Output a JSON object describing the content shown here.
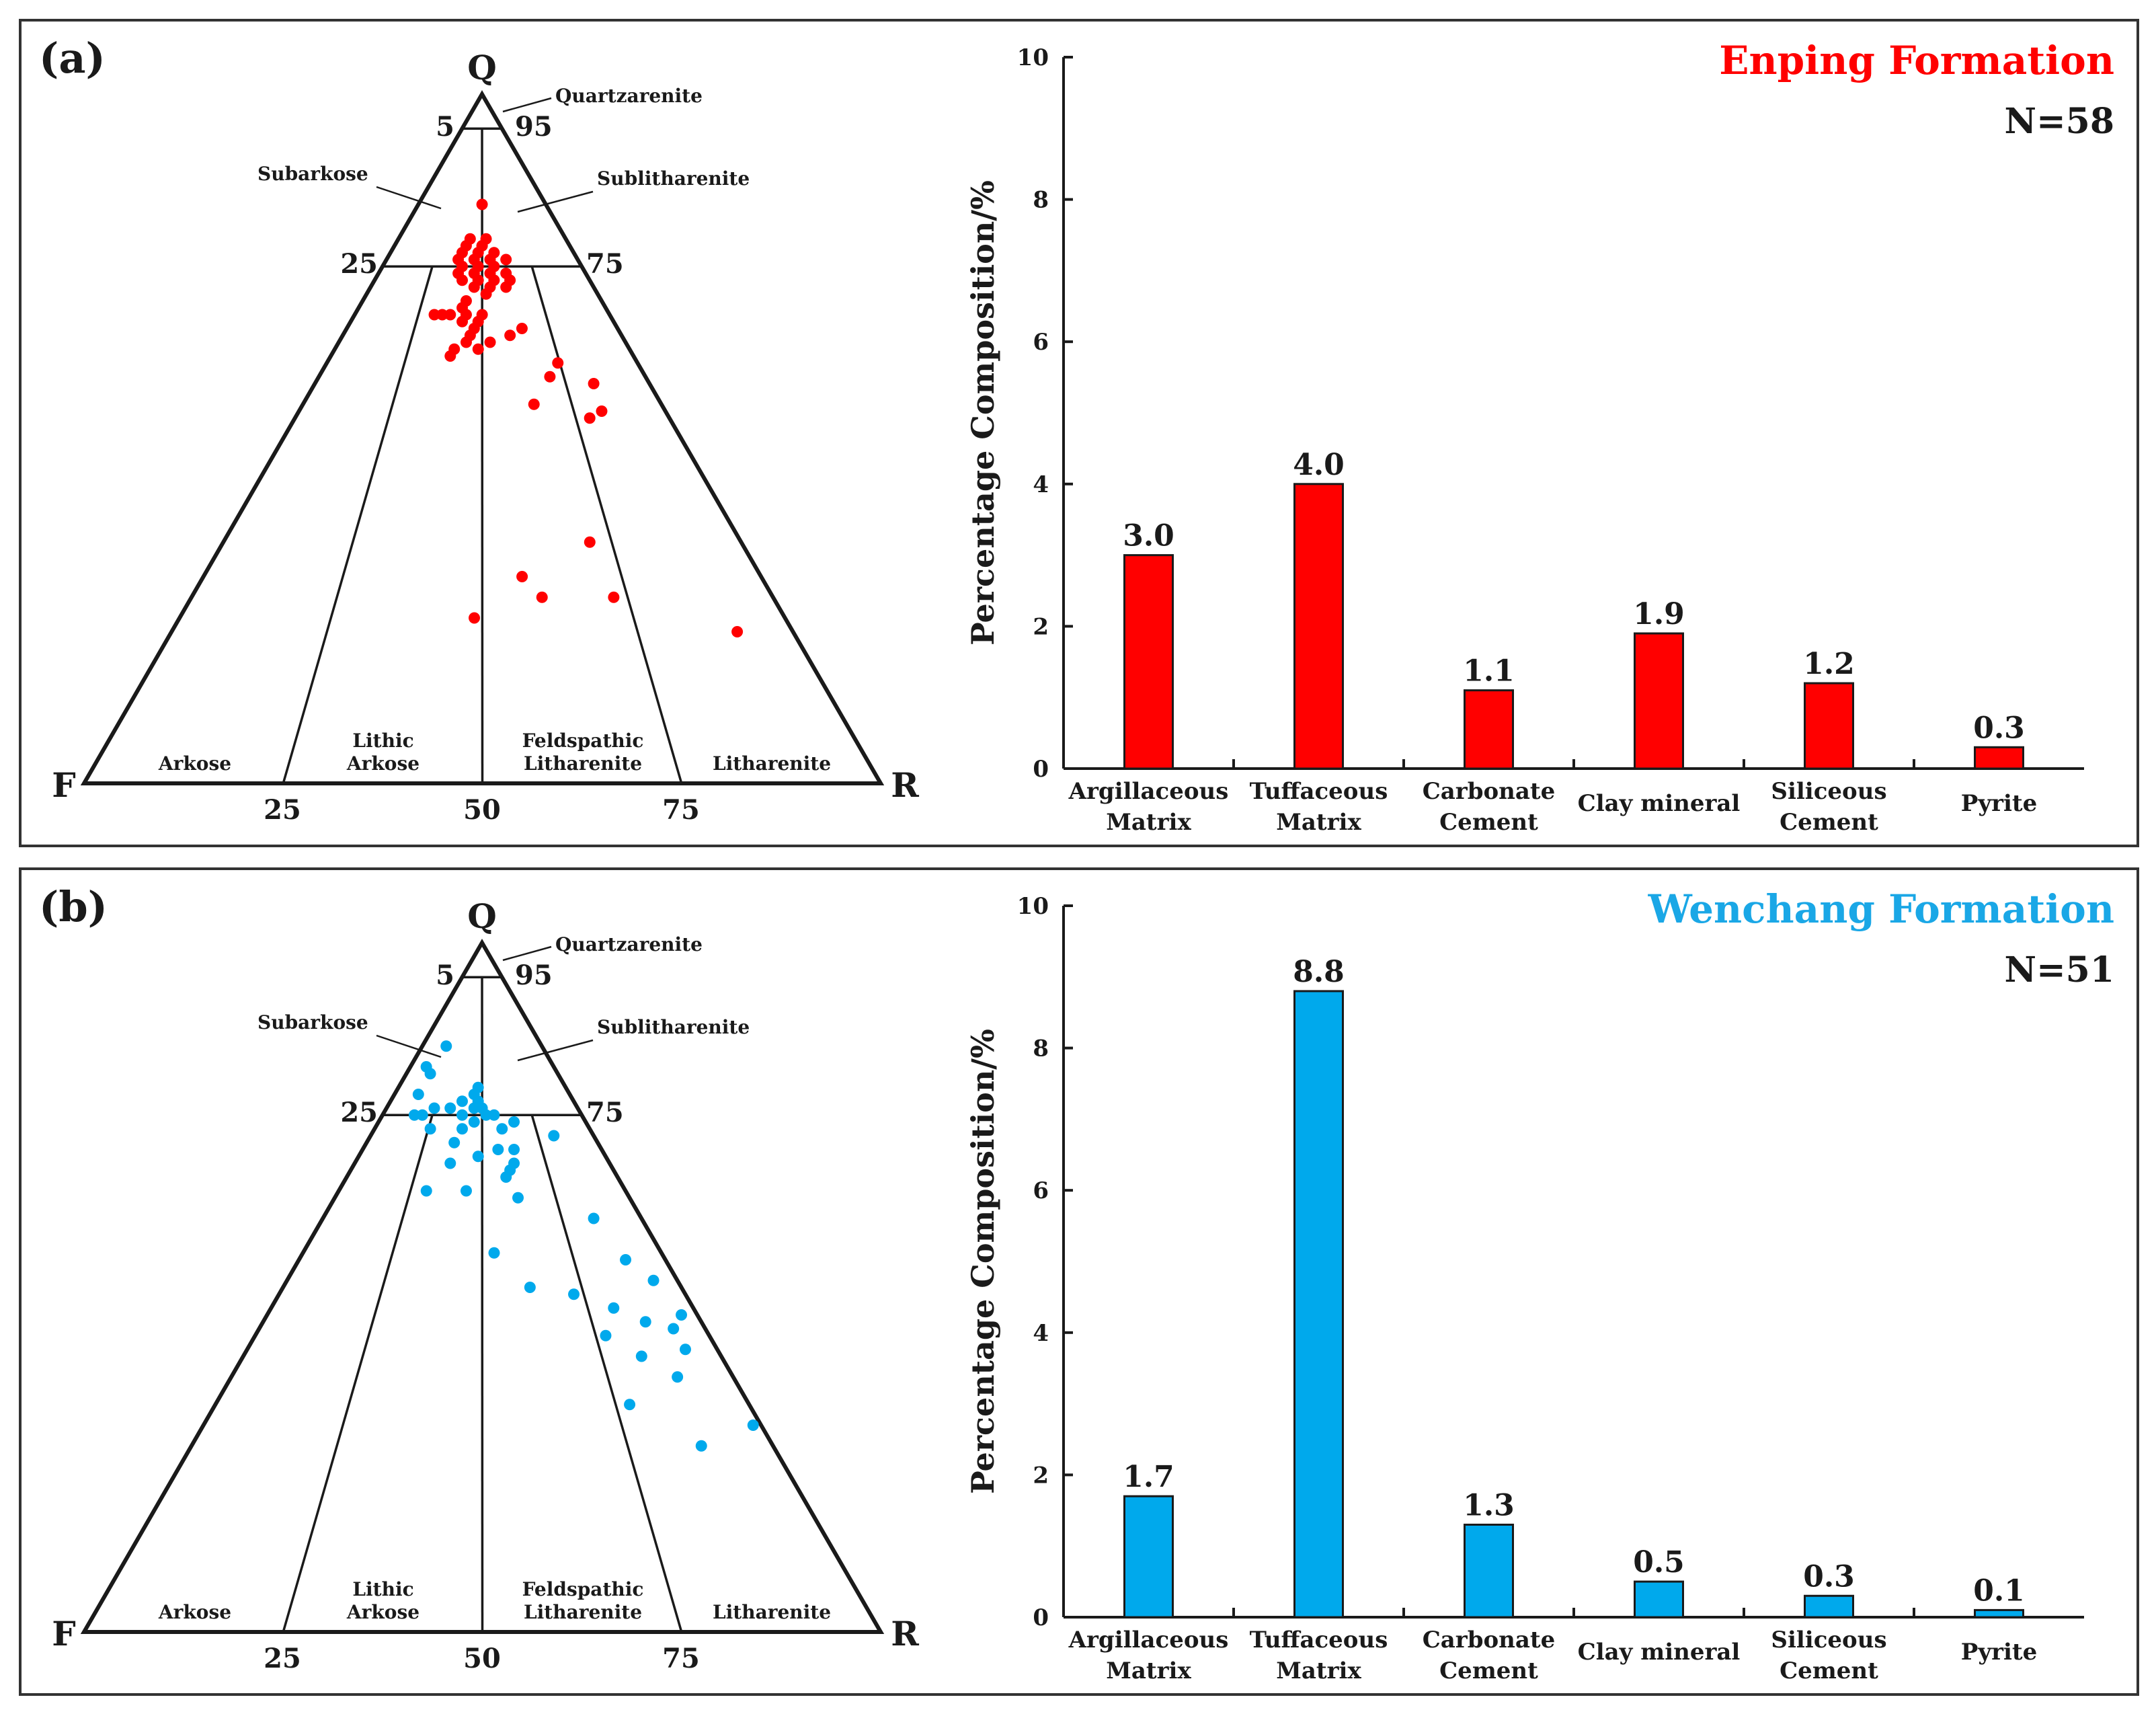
{
  "ternary": {
    "vertices": {
      "q": "Q",
      "f": "F",
      "r": "R"
    },
    "base_ticks": [
      "25",
      "50",
      "75"
    ],
    "side_ticks": {
      "top_left": "5",
      "top_right": "95",
      "mid_left": "25",
      "mid_right": "75"
    },
    "fields": {
      "quartzarenite": "Quartzarenite",
      "subarkose": "Subarkose",
      "sublitharenite": "Sublitharenite",
      "arkose": "Arkose",
      "lithic_arkose": [
        "Lithic",
        "Arkose"
      ],
      "feldspathic_litharenite": [
        "Feldspathic",
        "Litharenite"
      ],
      "litharenite": "Litharenite"
    }
  },
  "bar_axis": {
    "ylabel": "Percentage Composition/%",
    "ylim": [
      0,
      10
    ],
    "yticks": [
      "0",
      "2",
      "4",
      "6",
      "8",
      "10"
    ],
    "categories": [
      [
        "Argillaceous",
        "Matrix"
      ],
      [
        "Tuffaceous",
        "Matrix"
      ],
      [
        "Carbonate",
        "Cement"
      ],
      [
        "Clay mineral"
      ],
      [
        "Siliceous",
        "Cement"
      ],
      [
        "Pyrite"
      ]
    ]
  },
  "panels": [
    {
      "label": "(a)",
      "title": "Enping Formation",
      "n_label": "N=58",
      "color": "#ff0000",
      "title_color": "#ff0000"
    },
    {
      "label": "(b)",
      "title": "Wenchang Formation",
      "n_label": "N=51",
      "color": "#00a9ec",
      "title_color": "#1aa7e6"
    }
  ],
  "chart_data": [
    {
      "type": "scatter",
      "title": "",
      "plot": "ternary Q-F-R",
      "series": [
        {
          "name": "",
          "points_qfr_percent": [
            [
              84,
              8,
              8
            ],
            [
              79,
              10,
              11
            ],
            [
              79,
              12,
              9
            ],
            [
              78,
              11,
              11
            ],
            [
              78,
              13,
              9
            ],
            [
              78,
              11,
              11
            ],
            [
              77,
              10,
              13
            ],
            [
              77,
              12,
              11
            ],
            [
              77,
              14,
              9
            ],
            [
              76,
              11,
              13
            ],
            [
              76,
              13,
              11
            ],
            [
              76,
              15,
              9
            ],
            [
              76,
              9,
              15
            ],
            [
              75,
              13,
              12
            ],
            [
              75,
              15,
              10
            ],
            [
              75,
              11,
              14
            ],
            [
              74,
              12,
              14
            ],
            [
              74,
              14,
              12
            ],
            [
              74,
              16,
              10
            ],
            [
              74,
              10,
              16
            ],
            [
              73,
              12,
              15
            ],
            [
              73,
              14,
              13
            ],
            [
              73,
              16,
              11
            ],
            [
              73,
              10,
              17
            ],
            [
              72,
              13,
              15
            ],
            [
              72,
              11,
              17
            ],
            [
              72,
              15,
              13
            ],
            [
              71,
              14,
              15
            ],
            [
              70,
              17,
              13
            ],
            [
              69,
              18,
              13
            ],
            [
              68,
              16,
              16
            ],
            [
              68,
              18,
              14
            ],
            [
              68,
              20,
              12
            ],
            [
              68,
              21,
              11
            ],
            [
              68,
              22,
              10
            ],
            [
              67,
              19,
              14
            ],
            [
              67,
              17,
              16
            ],
            [
              66,
              18,
              16
            ],
            [
              66,
              12,
              22
            ],
            [
              65,
              19,
              16
            ],
            [
              65,
              14,
              21
            ],
            [
              64,
              20,
              16
            ],
            [
              64,
              17,
              19
            ],
            [
              63,
              22,
              15
            ],
            [
              63,
              19,
              18
            ],
            [
              62,
              23,
              15
            ],
            [
              61,
              10,
              29
            ],
            [
              58,
              7,
              35
            ],
            [
              59,
              12,
              29
            ],
            [
              55,
              16,
              29
            ],
            [
              54,
              8,
              38
            ],
            [
              53,
              10,
              37
            ],
            [
              35,
              19,
              46
            ],
            [
              27,
              20,
              53
            ],
            [
              22,
              7,
              71
            ],
            [
              27,
              29,
              44
            ],
            [
              24,
              39,
              37
            ],
            [
              30,
              30,
              40
            ]
          ]
        }
      ]
    },
    {
      "type": "bar",
      "title": "Enping Formation",
      "xlabel": "",
      "ylabel": "Percentage Composition/%",
      "ylim": [
        0,
        10
      ],
      "categories": [
        "Argillaceous Matrix",
        "Tuffaceous Matrix",
        "Carbonate Cement",
        "Clay mineral",
        "Siliceous Cement",
        "Pyrite"
      ],
      "values": [
        3.0,
        4.0,
        1.1,
        1.9,
        1.2,
        0.3
      ],
      "value_labels": [
        "3.0",
        "4.0",
        "1.1",
        "1.9",
        "1.2",
        "0.3"
      ]
    },
    {
      "type": "scatter",
      "title": "",
      "plot": "ternary Q-F-R",
      "series": [
        {
          "name": "",
          "points_qfr_percent": [
            [
              85,
              12,
              3
            ],
            [
              82,
              16,
              2
            ],
            [
              81,
              16,
              3
            ],
            [
              79,
              11,
              10
            ],
            [
              78,
              12,
              10
            ],
            [
              78,
              19,
              3
            ],
            [
              77,
              12,
              11
            ],
            [
              77,
              14,
              9
            ],
            [
              76,
              16,
              8
            ],
            [
              76,
              12,
              12
            ],
            [
              76,
              18,
              6
            ],
            [
              76,
              13,
              11
            ],
            [
              75,
              21,
              4
            ],
            [
              75,
              20,
              5
            ],
            [
              75,
              12,
              13
            ],
            [
              75,
              11,
              14
            ],
            [
              75,
              15,
              10
            ],
            [
              74,
              14,
              12
            ],
            [
              74,
              9,
              17
            ],
            [
              73,
              11,
              16
            ],
            [
              73,
              16,
              11
            ],
            [
              73,
              20,
              7
            ],
            [
              72,
              5,
              23
            ],
            [
              71,
              18,
              11
            ],
            [
              70,
              13,
              17
            ],
            [
              70,
              11,
              19
            ],
            [
              69,
              16,
              15
            ],
            [
              68,
              12,
              20
            ],
            [
              68,
              20,
              12
            ],
            [
              67,
              13,
              20
            ],
            [
              66,
              14,
              20
            ],
            [
              64,
              25,
              11
            ],
            [
              64,
              20,
              16
            ],
            [
              63,
              14,
              23
            ],
            [
              60,
              6,
              34
            ],
            [
              55,
              21,
              24
            ],
            [
              54,
              5,
              41
            ],
            [
              51,
              3,
              46
            ],
            [
              50,
              19,
              31
            ],
            [
              49,
              14,
              37
            ],
            [
              47,
              10,
              43
            ],
            [
              46,
              2,
              52
            ],
            [
              45,
              7,
              48
            ],
            [
              44,
              4,
              52
            ],
            [
              43,
              13,
              44
            ],
            [
              41,
              4,
              55
            ],
            [
              40,
              10,
              50
            ],
            [
              37,
              7,
              56
            ],
            [
              33,
              15,
              52
            ],
            [
              30,
              1,
              69
            ],
            [
              27,
              9,
              64
            ]
          ]
        }
      ]
    },
    {
      "type": "bar",
      "title": "Wenchang Formation",
      "xlabel": "",
      "ylabel": "Percentage Composition/%",
      "ylim": [
        0,
        10
      ],
      "categories": [
        "Argillaceous Matrix",
        "Tuffaceous Matrix",
        "Carbonate Cement",
        "Clay mineral",
        "Siliceous Cement",
        "Pyrite"
      ],
      "values": [
        1.7,
        8.8,
        1.3,
        0.5,
        0.3,
        0.1
      ],
      "value_labels": [
        "1.7",
        "8.8",
        "1.3",
        "0.5",
        "0.3",
        "0.1"
      ]
    }
  ]
}
